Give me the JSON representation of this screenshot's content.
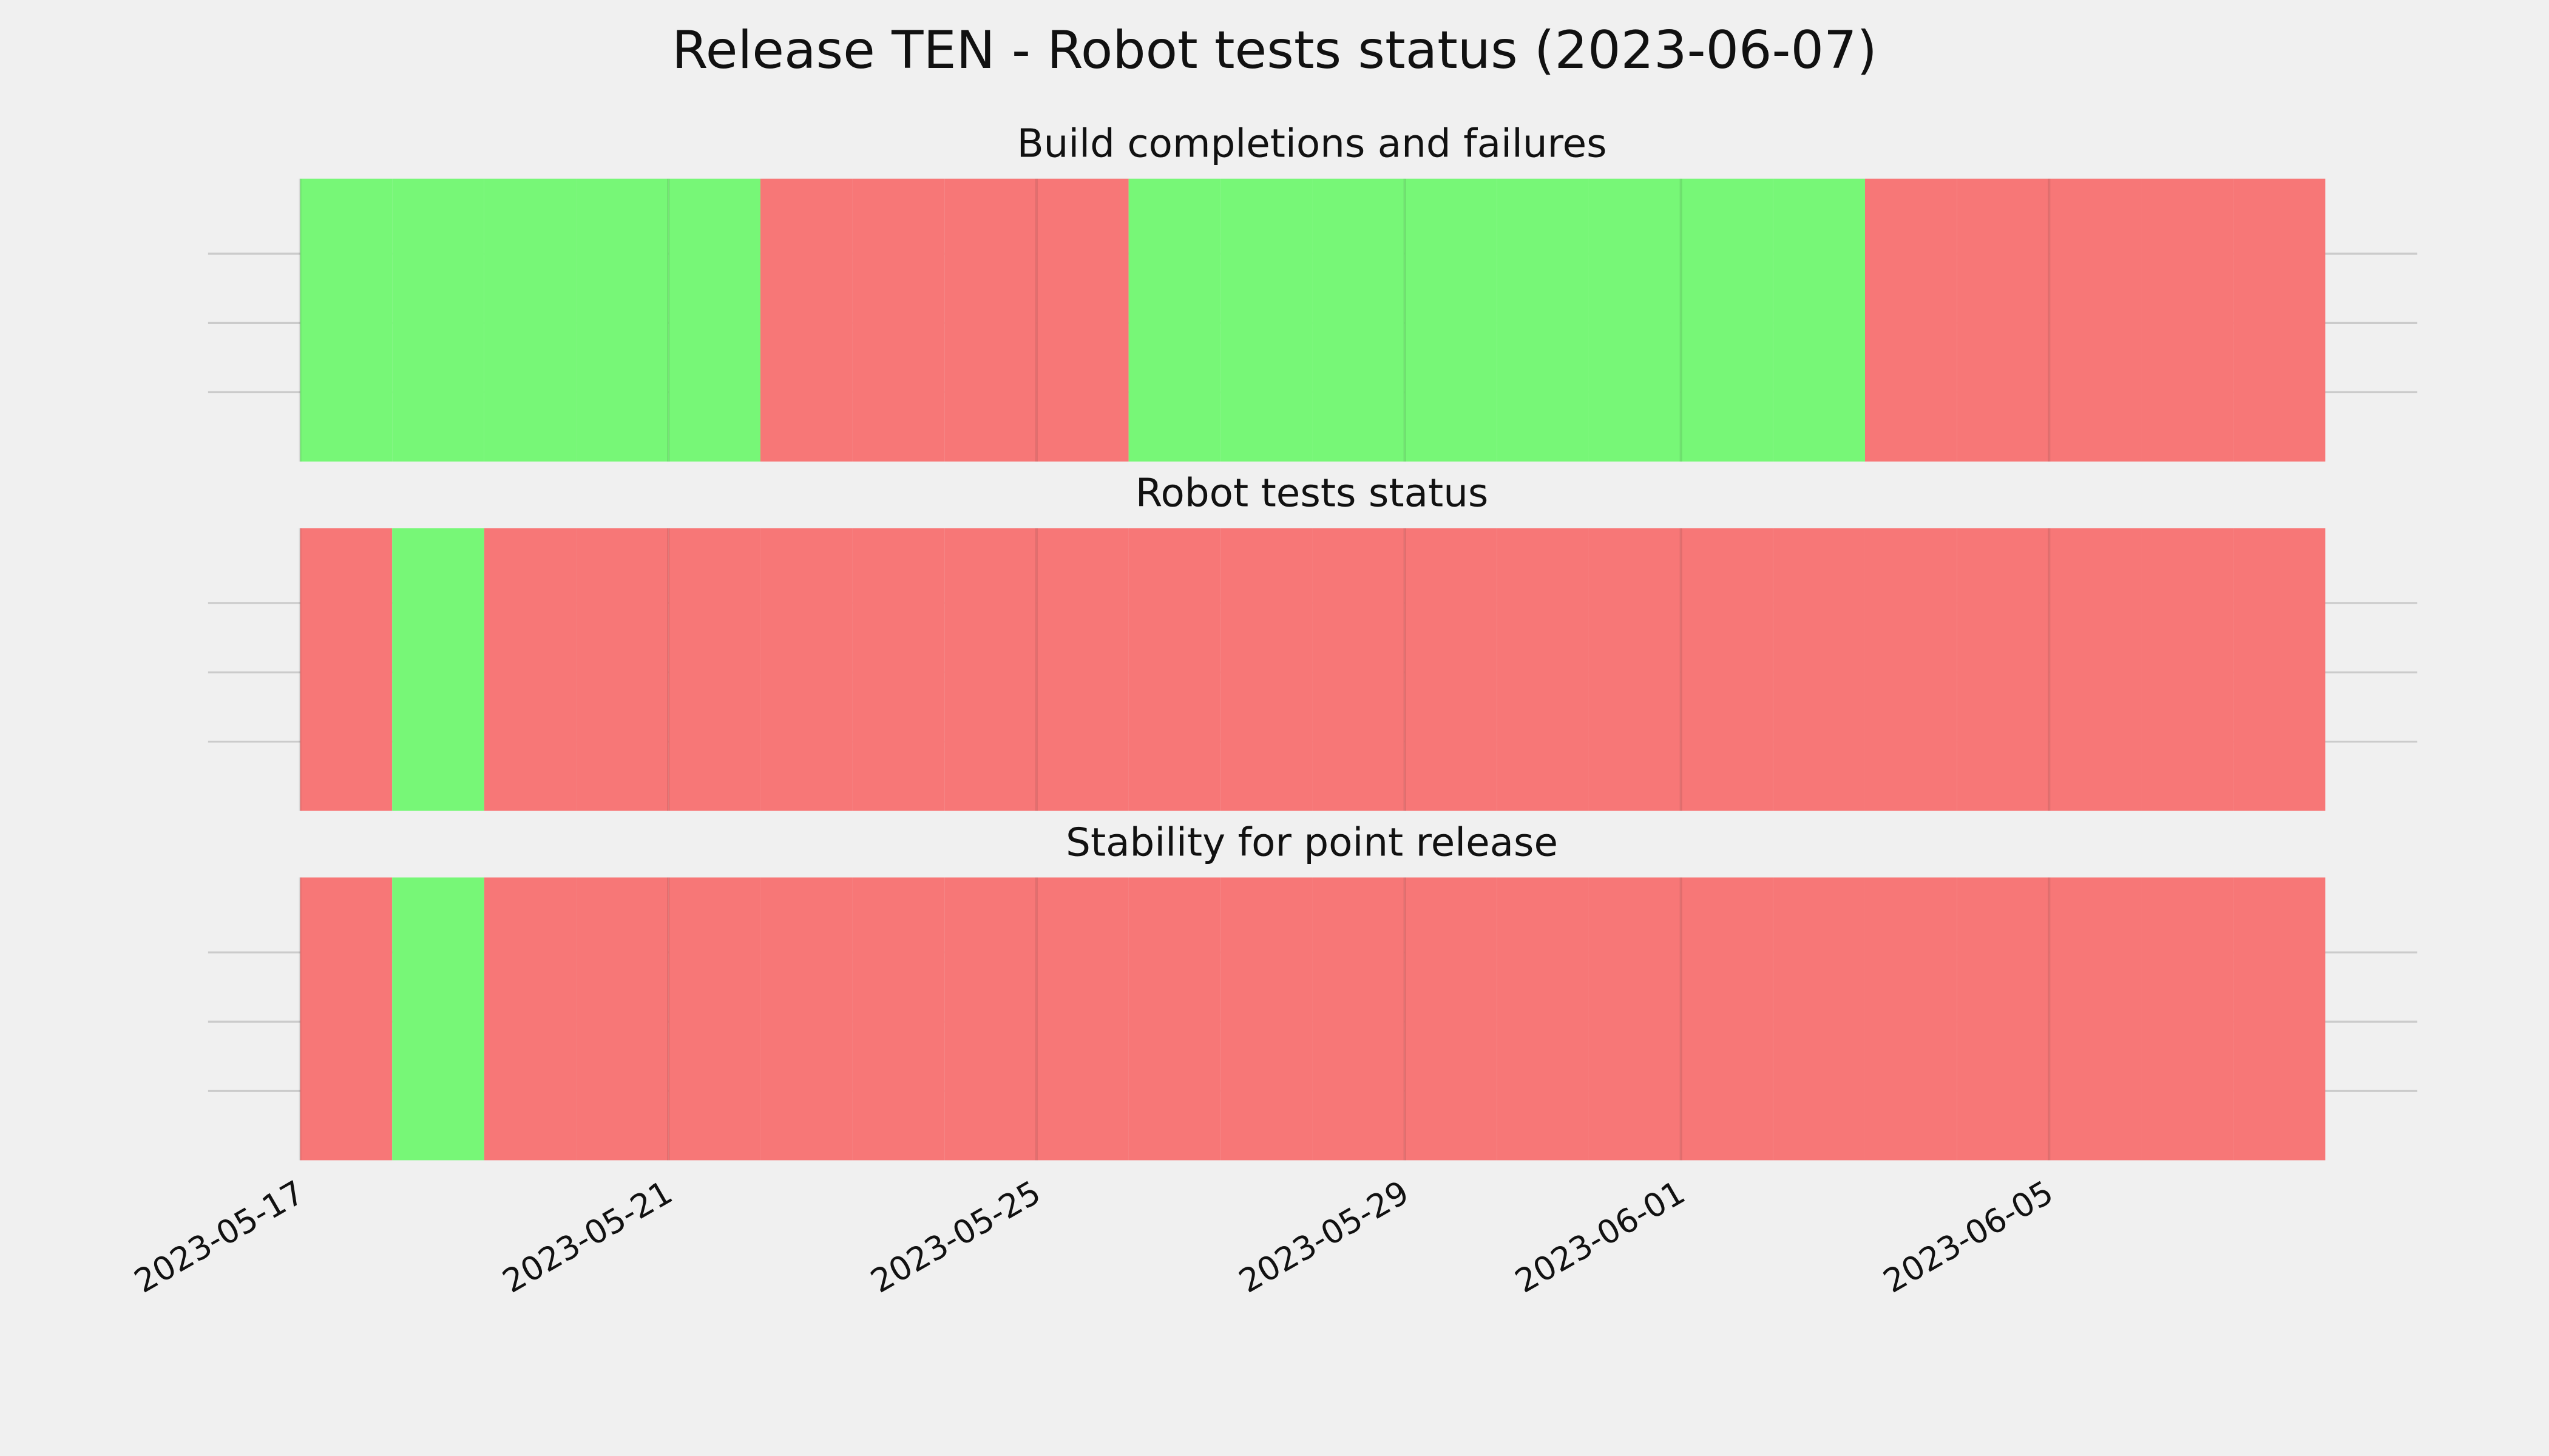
{
  "title": "Release TEN - Robot tests status (2023-06-07)",
  "xlim": [
    "2023-05-16",
    "2023-06-09"
  ],
  "xticks": [
    "2023-05-17",
    "2023-05-21",
    "2023-05-25",
    "2023-05-29",
    "2023-06-01",
    "2023-06-05"
  ],
  "chart_data": [
    {
      "type": "status_timeline",
      "title": "Build completions and failures",
      "x": [
        "2023-05-17",
        "2023-05-18",
        "2023-05-19",
        "2023-05-20",
        "2023-05-21",
        "2023-05-22",
        "2023-05-23",
        "2023-05-24",
        "2023-05-25",
        "2023-05-26",
        "2023-05-27",
        "2023-05-28",
        "2023-05-29",
        "2023-05-30",
        "2023-05-31",
        "2023-06-01",
        "2023-06-02",
        "2023-06-03",
        "2023-06-04",
        "2023-06-05",
        "2023-06-06",
        "2023-06-07"
      ],
      "colors": [
        "#77f777",
        "#77f777",
        "#77f777",
        "#77f777",
        "#77f777",
        "#f77777",
        "#f77777",
        "#f77777",
        "#f77777",
        "#77f777",
        "#77f777",
        "#77f777",
        "#77f777",
        "#77f777",
        "#77f777",
        "#77f777",
        "#77f777",
        "#f77777",
        "#f77777",
        "#f77777",
        "#f77777",
        "#f77777"
      ]
    },
    {
      "type": "status_timeline",
      "title": "Robot tests status",
      "x": [
        "2023-05-17",
        "2023-05-18",
        "2023-05-19",
        "2023-05-20",
        "2023-05-21",
        "2023-05-22",
        "2023-05-23",
        "2023-05-24",
        "2023-05-25",
        "2023-05-26",
        "2023-05-27",
        "2023-05-28",
        "2023-05-29",
        "2023-05-30",
        "2023-05-31",
        "2023-06-01",
        "2023-06-02",
        "2023-06-03",
        "2023-06-04",
        "2023-06-05",
        "2023-06-06",
        "2023-06-07"
      ],
      "colors": [
        "#f77777",
        "#77f777",
        "#f77777",
        "#f77777",
        "#f77777",
        "#f77777",
        "#f77777",
        "#f77777",
        "#f77777",
        "#f77777",
        "#f77777",
        "#f77777",
        "#f77777",
        "#f77777",
        "#f77777",
        "#f77777",
        "#f77777",
        "#f77777",
        "#f77777",
        "#f77777",
        "#f77777",
        "#f77777"
      ]
    },
    {
      "type": "status_timeline",
      "title": "Stability for point release",
      "x": [
        "2023-05-17",
        "2023-05-18",
        "2023-05-19",
        "2023-05-20",
        "2023-05-21",
        "2023-05-22",
        "2023-05-23",
        "2023-05-24",
        "2023-05-25",
        "2023-05-26",
        "2023-05-27",
        "2023-05-28",
        "2023-05-29",
        "2023-05-30",
        "2023-05-31",
        "2023-06-01",
        "2023-06-02",
        "2023-06-03",
        "2023-06-04",
        "2023-06-05",
        "2023-06-06",
        "2023-06-07"
      ],
      "colors": [
        "#f77777",
        "#77f777",
        "#f77777",
        "#f77777",
        "#f77777",
        "#f77777",
        "#f77777",
        "#f77777",
        "#f77777",
        "#f77777",
        "#f77777",
        "#f77777",
        "#f77777",
        "#f77777",
        "#f77777",
        "#f77777",
        "#f77777",
        "#f77777",
        "#f77777",
        "#f77777",
        "#f77777",
        "#f77777"
      ]
    }
  ]
}
